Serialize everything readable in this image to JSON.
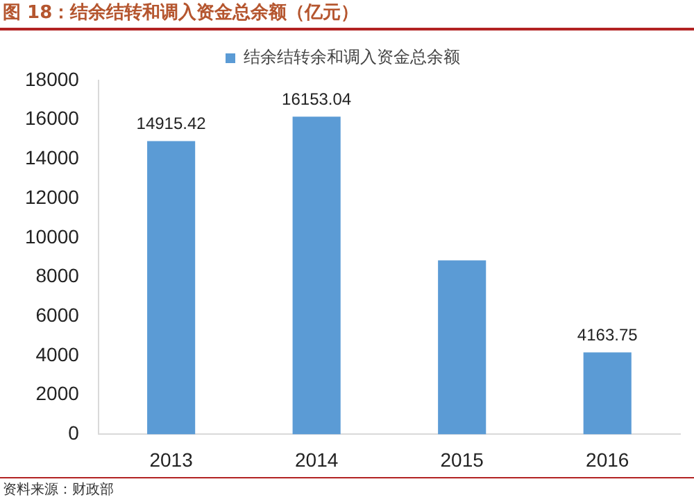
{
  "chart_data": {
    "type": "bar",
    "title": "图 18：结余结转和调入资金总余额（亿元）",
    "annotations": [
      "资料来源：财政部"
    ],
    "categories": [
      "2013",
      "2014",
      "2015",
      "2016"
    ],
    "series": [
      {
        "name": "结余结转余和调入资金总余额",
        "color": "#5b9bd5",
        "values": [
          14915.42,
          16153.04,
          8850,
          4163.75
        ],
        "value_labels": [
          "14915.42",
          "16153.04",
          null,
          "4163.75"
        ]
      }
    ],
    "ylim": [
      0,
      18000
    ],
    "yticks": [
      0,
      2000,
      4000,
      6000,
      8000,
      10000,
      12000,
      14000,
      16000,
      18000
    ],
    "grid": false,
    "legend": "top"
  }
}
